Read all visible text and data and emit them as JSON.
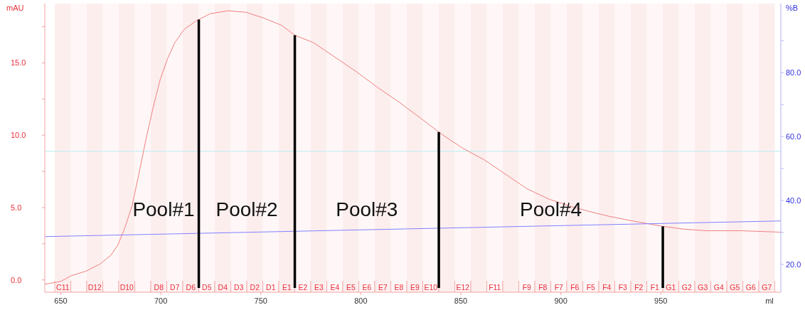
{
  "chart_data": {
    "type": "line",
    "xlabel": "ml",
    "ylabel": "mAU",
    "y2label": "%B",
    "x": [
      642,
      650,
      655.3,
      662.5,
      669.6,
      675,
      678.5,
      682,
      685.6,
      689,
      692.7,
      696.3,
      699.8,
      703.4,
      707,
      711.6,
      717.6,
      724.7,
      733.6,
      742.5,
      751.4,
      760.3,
      767.1,
      776.3,
      787,
      797.7,
      808.4,
      819,
      829.7,
      841.1,
      851,
      861.7,
      872.4,
      883.1,
      893.8,
      904.4,
      915.1,
      924,
      935,
      951,
      962,
      973,
      990,
      1010
    ],
    "series": [
      {
        "color": "#f08080",
        "values": [
          -0.3,
          -0.1,
          0.3,
          0.6,
          1.1,
          1.7,
          2.4,
          3.6,
          5.1,
          7.3,
          9.8,
          12.0,
          13.9,
          15.3,
          16.4,
          17.3,
          17.9,
          18.4,
          18.6,
          18.5,
          18.1,
          17.6,
          16.9,
          16.4,
          15.4,
          14.4,
          13.3,
          12.3,
          11.2,
          10.0,
          9.1,
          8.3,
          7.3,
          6.3,
          5.6,
          5.1,
          4.7,
          4.4,
          4.1,
          3.7,
          3.5,
          3.4,
          3.4,
          3.3
        ]
      },
      {
        "color": "#8080ff",
        "axis": "y2",
        "x": [
          642,
          1010
        ],
        "values": [
          28.7,
          33.6
        ]
      }
    ],
    "xlim": [
      642,
      1010
    ],
    "xticks": [
      650,
      700,
      750,
      800,
      850,
      900,
      950
    ],
    "ylim": [
      -0.85,
      19.1
    ],
    "yticks": [
      {
        "value": 0,
        "label": "0.0"
      },
      {
        "value": 2.5,
        "label": null
      },
      {
        "value": 5,
        "label": "5.0"
      },
      {
        "value": 7.5,
        "label": null
      },
      {
        "value": 10,
        "label": "10.0"
      },
      {
        "value": 12.5,
        "label": null
      },
      {
        "value": 15,
        "label": "15.0"
      },
      {
        "value": 17.5,
        "label": null
      }
    ],
    "y2lim": [
      11.3,
      101.6
    ],
    "y2ticks": [
      {
        "value": 20,
        "label": "20.0"
      },
      {
        "value": 30,
        "label": null
      },
      {
        "value": 40,
        "label": "40.0"
      },
      {
        "value": 50,
        "label": null
      },
      {
        "value": 60,
        "label": "60.0"
      },
      {
        "value": 70,
        "label": null
      },
      {
        "value": 80,
        "label": "80.0"
      },
      {
        "value": 90,
        "label": null
      }
    ],
    "bands": [
      {
        "axis": "x",
        "from": 647,
        "to": 655,
        "label": "C11"
      },
      {
        "axis": "x",
        "from": 655,
        "to": 663
      },
      {
        "axis": "x",
        "from": 663,
        "to": 671,
        "label": "D12"
      },
      {
        "axis": "x",
        "from": 671,
        "to": 679
      },
      {
        "axis": "x",
        "from": 679,
        "to": 687,
        "label": "D10"
      },
      {
        "axis": "x",
        "from": 687,
        "to": 695
      },
      {
        "axis": "x",
        "from": 695,
        "to": 703,
        "label": "D8"
      },
      {
        "axis": "x",
        "from": 703,
        "to": 711,
        "label": "D7"
      },
      {
        "axis": "x",
        "from": 711,
        "to": 719,
        "label": "D6"
      },
      {
        "axis": "x",
        "from": 719,
        "to": 727,
        "label": "D5"
      },
      {
        "axis": "x",
        "from": 727,
        "to": 735,
        "label": "D4"
      },
      {
        "axis": "x",
        "from": 735,
        "to": 743,
        "label": "D3"
      },
      {
        "axis": "x",
        "from": 743,
        "to": 751,
        "label": "D2"
      },
      {
        "axis": "x",
        "from": 751,
        "to": 759,
        "label": "D1"
      },
      {
        "axis": "x",
        "from": 759,
        "to": 767,
        "label": "E1"
      },
      {
        "axis": "x",
        "from": 767,
        "to": 775,
        "label": "E2"
      },
      {
        "axis": "x",
        "from": 775,
        "to": 783,
        "label": "E3"
      },
      {
        "axis": "x",
        "from": 783,
        "to": 791,
        "label": "E4"
      },
      {
        "axis": "x",
        "from": 791,
        "to": 799,
        "label": "E5"
      },
      {
        "axis": "x",
        "from": 799,
        "to": 807,
        "label": "E6"
      },
      {
        "axis": "x",
        "from": 807,
        "to": 815,
        "label": "E7"
      },
      {
        "axis": "x",
        "from": 815,
        "to": 823,
        "label": "E8"
      },
      {
        "axis": "x",
        "from": 823,
        "to": 831,
        "label": "E9"
      },
      {
        "axis": "x",
        "from": 831,
        "to": 839,
        "label": "E10"
      },
      {
        "axis": "x",
        "from": 839,
        "to": 847
      },
      {
        "axis": "x",
        "from": 847,
        "to": 855,
        "label": "E12"
      },
      {
        "axis": "x",
        "from": 855,
        "to": 863
      },
      {
        "axis": "x",
        "from": 863,
        "to": 871,
        "label": "F11"
      },
      {
        "axis": "x",
        "from": 871,
        "to": 879
      },
      {
        "axis": "x",
        "from": 879,
        "to": 887,
        "label": "F9"
      },
      {
        "axis": "x",
        "from": 887,
        "to": 895,
        "label": "F8"
      },
      {
        "axis": "x",
        "from": 895,
        "to": 903,
        "label": "F7"
      },
      {
        "axis": "x",
        "from": 903,
        "to": 911,
        "label": "F6"
      },
      {
        "axis": "x",
        "from": 911,
        "to": 919,
        "label": "F5"
      },
      {
        "axis": "x",
        "from": 919,
        "to": 927,
        "label": "F4"
      },
      {
        "axis": "x",
        "from": 927,
        "to": 935,
        "label": "F3"
      },
      {
        "axis": "x",
        "from": 935,
        "to": 943,
        "label": "F2"
      },
      {
        "axis": "x",
        "from": 943,
        "to": 951,
        "label": "F1"
      },
      {
        "axis": "x",
        "from": 951,
        "to": 959,
        "label": "G1"
      },
      {
        "axis": "x",
        "from": 959,
        "to": 967,
        "label": "G2"
      },
      {
        "axis": "x",
        "from": 967,
        "to": 975,
        "label": "G3"
      },
      {
        "axis": "x",
        "from": 975,
        "to": 983,
        "label": "G4"
      },
      {
        "axis": "x",
        "from": 983,
        "to": 991,
        "label": "G5"
      },
      {
        "axis": "x",
        "from": 991,
        "to": 999,
        "label": "G6"
      },
      {
        "axis": "x",
        "from": 999,
        "to": 1007,
        "label": "G7"
      }
    ],
    "ref_lines": [
      {
        "axis": "y",
        "value": 8.9,
        "color": "#c8eef0"
      },
      {
        "axis": "x",
        "value": 719,
        "color": "#000000"
      },
      {
        "axis": "x",
        "value": 767,
        "color": "#000000"
      },
      {
        "axis": "x",
        "value": 839,
        "color": "#000000"
      },
      {
        "axis": "x",
        "value": 951,
        "color": "#000000"
      }
    ],
    "annotations": [
      "Pool#1",
      "Pool#2",
      "Pool#3",
      "Pool#4"
    ],
    "grid": false
  }
}
